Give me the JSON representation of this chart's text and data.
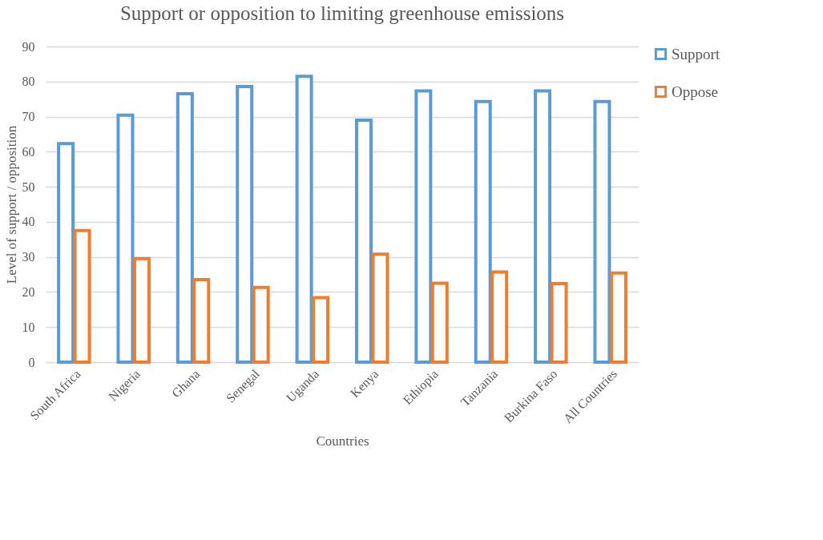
{
  "chart_data": {
    "type": "bar",
    "title": "Support or opposition to limiting greenhouse emissions",
    "xlabel": "Countries",
    "ylabel": "Level of support / opposition",
    "categories": [
      "South Africa",
      "Nigeria",
      "Ghana",
      "Senegal",
      "Uganda",
      "Kenya",
      "Ethiopia",
      "Tanzania",
      "Burkina Faso",
      "All Countries"
    ],
    "series": [
      {
        "name": "Support",
        "color": "#5b9bd5",
        "values": [
          62.3,
          70.4,
          76.5,
          78.6,
          81.5,
          69.0,
          77.3,
          74.3,
          77.3,
          74.3
        ]
      },
      {
        "name": "Oppose",
        "color": "#ed7d31",
        "values": [
          37.5,
          29.5,
          23.5,
          21.3,
          18.4,
          30.8,
          22.5,
          25.7,
          22.4,
          25.4
        ]
      }
    ],
    "ylim": [
      0,
      90
    ],
    "yticks": [
      0,
      10,
      20,
      30,
      40,
      50,
      60,
      70,
      80,
      90
    ],
    "grid": "y",
    "legend": "right"
  }
}
